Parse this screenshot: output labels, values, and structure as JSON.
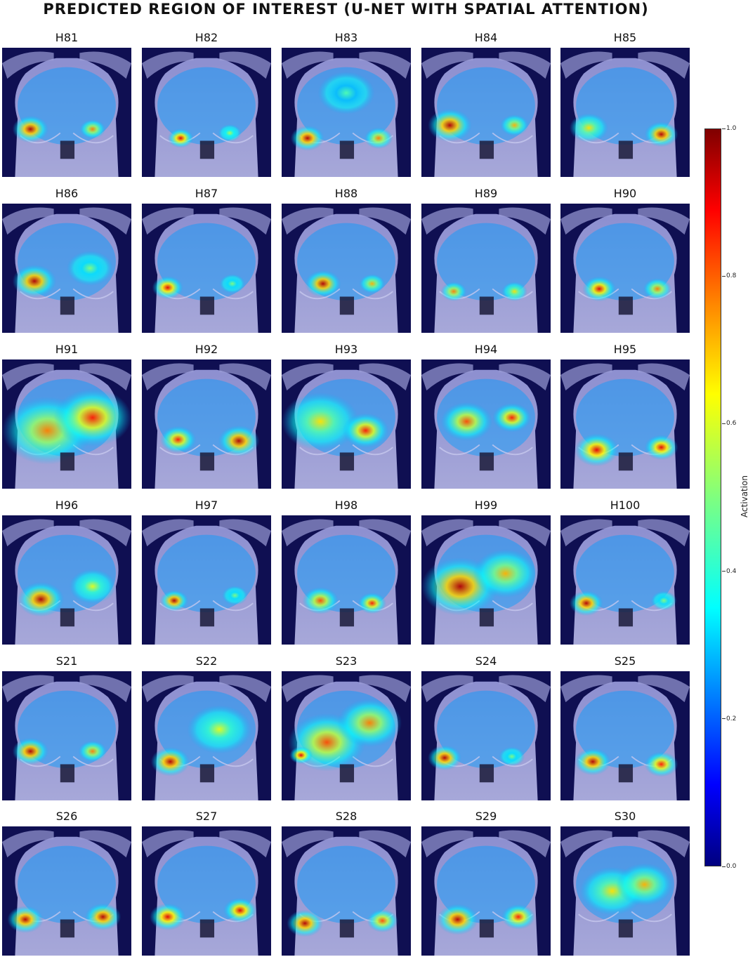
{
  "figure": {
    "title": "PREDICTED REGION OF INTEREST (U-NET WITH SPATIAL ATTENTION)"
  },
  "panels": [
    {
      "label": "H81",
      "spots": [
        [
          0.22,
          0.63,
          0.95,
          0.14
        ],
        [
          0.7,
          0.63,
          0.75,
          0.1
        ]
      ]
    },
    {
      "label": "H82",
      "spots": [
        [
          0.3,
          0.7,
          0.9,
          0.1
        ],
        [
          0.68,
          0.66,
          0.55,
          0.09
        ]
      ]
    },
    {
      "label": "H83",
      "spots": [
        [
          0.2,
          0.7,
          0.95,
          0.13
        ],
        [
          0.75,
          0.7,
          0.75,
          0.11
        ],
        [
          0.5,
          0.35,
          0.45,
          0.22
        ]
      ]
    },
    {
      "label": "H84",
      "spots": [
        [
          0.22,
          0.6,
          0.95,
          0.17
        ],
        [
          0.72,
          0.6,
          0.7,
          0.11
        ]
      ]
    },
    {
      "label": "H85",
      "spots": [
        [
          0.22,
          0.62,
          0.65,
          0.15
        ],
        [
          0.78,
          0.67,
          0.95,
          0.13
        ]
      ]
    },
    {
      "label": "H86",
      "spots": [
        [
          0.25,
          0.6,
          0.95,
          0.17
        ],
        [
          0.68,
          0.5,
          0.5,
          0.18
        ]
      ]
    },
    {
      "label": "H87",
      "spots": [
        [
          0.2,
          0.65,
          0.9,
          0.12
        ],
        [
          0.7,
          0.62,
          0.5,
          0.1
        ]
      ]
    },
    {
      "label": "H88",
      "spots": [
        [
          0.32,
          0.62,
          0.95,
          0.14
        ],
        [
          0.7,
          0.62,
          0.7,
          0.1
        ]
      ]
    },
    {
      "label": "H89",
      "spots": [
        [
          0.25,
          0.68,
          0.75,
          0.1
        ],
        [
          0.72,
          0.68,
          0.65,
          0.1
        ]
      ]
    },
    {
      "label": "H90",
      "spots": [
        [
          0.3,
          0.66,
          0.9,
          0.13
        ],
        [
          0.75,
          0.66,
          0.75,
          0.11
        ]
      ]
    },
    {
      "label": "H91",
      "spots": [
        [
          0.35,
          0.55,
          0.75,
          0.35
        ],
        [
          0.7,
          0.45,
          0.85,
          0.3
        ]
      ]
    },
    {
      "label": "H92",
      "spots": [
        [
          0.28,
          0.62,
          0.85,
          0.14
        ],
        [
          0.75,
          0.63,
          0.95,
          0.16
        ]
      ]
    },
    {
      "label": "H93",
      "spots": [
        [
          0.3,
          0.48,
          0.65,
          0.3
        ],
        [
          0.65,
          0.55,
          0.85,
          0.18
        ]
      ]
    },
    {
      "label": "H94",
      "spots": [
        [
          0.35,
          0.48,
          0.8,
          0.2
        ],
        [
          0.7,
          0.45,
          0.85,
          0.15
        ]
      ]
    },
    {
      "label": "H95",
      "spots": [
        [
          0.28,
          0.7,
          0.9,
          0.17
        ],
        [
          0.78,
          0.68,
          0.9,
          0.13
        ]
      ]
    },
    {
      "label": "H96",
      "spots": [
        [
          0.3,
          0.65,
          0.95,
          0.18
        ],
        [
          0.7,
          0.55,
          0.6,
          0.18
        ]
      ]
    },
    {
      "label": "H97",
      "spots": [
        [
          0.25,
          0.66,
          0.95,
          0.11
        ],
        [
          0.72,
          0.62,
          0.5,
          0.1
        ]
      ]
    },
    {
      "label": "H98",
      "spots": [
        [
          0.3,
          0.66,
          0.8,
          0.14
        ],
        [
          0.7,
          0.68,
          0.85,
          0.11
        ]
      ]
    },
    {
      "label": "H99",
      "spots": [
        [
          0.3,
          0.55,
          0.95,
          0.3
        ],
        [
          0.65,
          0.45,
          0.7,
          0.25
        ]
      ]
    },
    {
      "label": "H100",
      "spots": [
        [
          0.2,
          0.68,
          0.95,
          0.13
        ],
        [
          0.8,
          0.66,
          0.5,
          0.1
        ]
      ]
    },
    {
      "label": "S21",
      "spots": [
        [
          0.22,
          0.62,
          0.95,
          0.14
        ],
        [
          0.7,
          0.62,
          0.75,
          0.11
        ]
      ]
    },
    {
      "label": "S22",
      "spots": [
        [
          0.22,
          0.7,
          0.95,
          0.15
        ],
        [
          0.6,
          0.45,
          0.6,
          0.25
        ]
      ]
    },
    {
      "label": "S23",
      "spots": [
        [
          0.35,
          0.55,
          0.8,
          0.3
        ],
        [
          0.68,
          0.4,
          0.75,
          0.25
        ],
        [
          0.15,
          0.65,
          0.9,
          0.09
        ]
      ]
    },
    {
      "label": "S24",
      "spots": [
        [
          0.18,
          0.67,
          0.95,
          0.13
        ],
        [
          0.7,
          0.66,
          0.5,
          0.1
        ]
      ]
    },
    {
      "label": "S25",
      "spots": [
        [
          0.25,
          0.7,
          0.95,
          0.14
        ],
        [
          0.78,
          0.72,
          0.85,
          0.13
        ]
      ]
    },
    {
      "label": "S26",
      "spots": [
        [
          0.18,
          0.72,
          0.95,
          0.14
        ],
        [
          0.78,
          0.7,
          0.95,
          0.14
        ]
      ]
    },
    {
      "label": "S27",
      "spots": [
        [
          0.2,
          0.7,
          0.9,
          0.14
        ],
        [
          0.76,
          0.65,
          0.9,
          0.13
        ]
      ]
    },
    {
      "label": "S28",
      "spots": [
        [
          0.18,
          0.75,
          0.95,
          0.14
        ],
        [
          0.78,
          0.73,
          0.8,
          0.12
        ]
      ]
    },
    {
      "label": "S29",
      "spots": [
        [
          0.28,
          0.72,
          0.95,
          0.16
        ],
        [
          0.75,
          0.7,
          0.85,
          0.13
        ]
      ]
    },
    {
      "label": "S30",
      "spots": [
        [
          0.4,
          0.5,
          0.65,
          0.25
        ],
        [
          0.65,
          0.45,
          0.7,
          0.22
        ]
      ]
    }
  ],
  "colorbar": {
    "label": "Activation",
    "ticks": [
      "0.0",
      "0.2",
      "0.4",
      "0.6",
      "0.8",
      "1.0"
    ]
  }
}
